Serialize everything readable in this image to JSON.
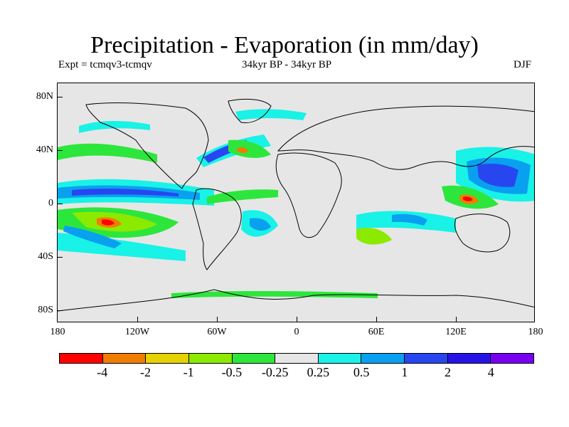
{
  "title": "Precipitation - Evaporation (in mm/day)",
  "subtitle_left": "Expt = tcmqv3-tcmqv",
  "subtitle_center": "34kyr BP - 34kyr BP",
  "subtitle_right": "DJF",
  "y_axis_labels": [
    "80N",
    "40N",
    "0",
    "40S",
    "80S"
  ],
  "x_axis_labels": [
    "180",
    "120W",
    "60W",
    "0",
    "60E",
    "120E",
    "180"
  ],
  "colorbar": {
    "colors": [
      "#ff0000",
      "#f07d00",
      "#e6d200",
      "#8cea00",
      "#2de63c",
      "#e6e6e6",
      "#19f2e6",
      "#0aa0f0",
      "#2846f0",
      "#2814e6",
      "#7800f0"
    ],
    "labels": [
      "-4",
      "-2",
      "-1",
      "-0.5",
      "-0.25",
      "0.25",
      "0.5",
      "1",
      "2",
      "4"
    ]
  },
  "map_colors": {
    "background": "#e6e6e6",
    "coastline": "#000000"
  }
}
